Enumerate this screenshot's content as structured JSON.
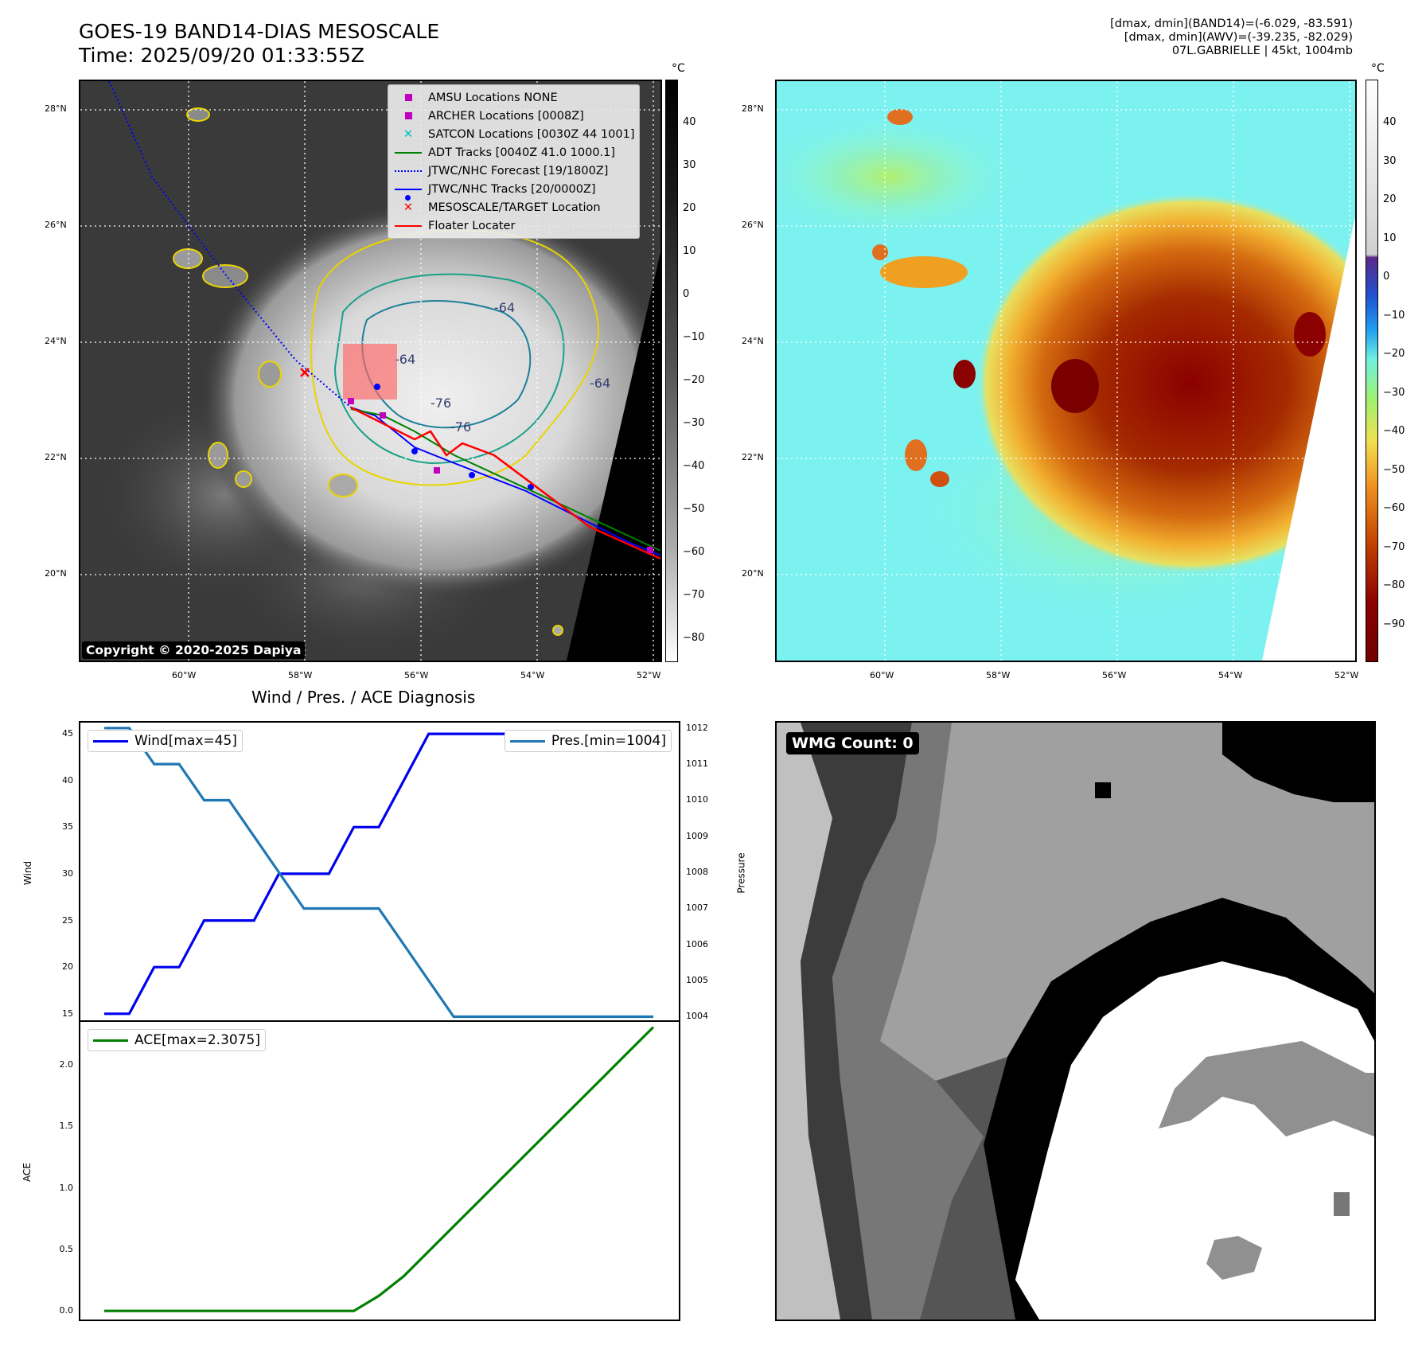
{
  "header": {
    "title_line1": "GOES-19 BAND14-DIAS MESOSCALE",
    "title_line2": "Time: 2025/09/20 01:33:55Z",
    "right_line1": "[dmax, dmin](BAND14)=(-6.029, -83.591)",
    "right_line2": "[dmax, dmin](AWV)=(-39.235, -82.029)",
    "right_line3": "07L.GABRIELLE | 45kt, 1004mb"
  },
  "map": {
    "lat_ticks": [
      "28°N",
      "26°N",
      "24°N",
      "22°N",
      "20°N"
    ],
    "lon_ticks": [
      "60°W",
      "58°W",
      "56°W",
      "54°W",
      "52°W"
    ],
    "copyright": "Copyright © 2020-2025 Dapiya",
    "contour_labels": [
      "-64",
      "-64",
      "-76",
      "-76",
      "-64"
    ],
    "legend": [
      {
        "label": "AMSU Locations NONE",
        "color": "#c000c0",
        "marker": "square"
      },
      {
        "label": "ARCHER Locations [0008Z]",
        "color": "#c000c0",
        "marker": "square"
      },
      {
        "label": "SATCON Locations [0030Z 44 1001]",
        "color": "#00c0c0",
        "marker": "x"
      },
      {
        "label": "ADT Tracks [0040Z 41.0 1000.1]",
        "color": "#008000",
        "marker": "line"
      },
      {
        "label": "JTWC/NHC Forecast [19/1800Z]",
        "color": "#0000ff",
        "marker": "dotted"
      },
      {
        "label": "JTWC/NHC Tracks [20/0000Z]",
        "color": "#0000ff",
        "marker": "line-dot"
      },
      {
        "label": "MESOSCALE/TARGET Location",
        "color": "#ff0000",
        "marker": "x"
      },
      {
        "label": "Floater Locater",
        "color": "#ff0000",
        "marker": "line"
      }
    ]
  },
  "colorbar_gray": {
    "unit": "°C",
    "ticks": [
      "40",
      "30",
      "20",
      "10",
      "0",
      "−10",
      "−20",
      "−30",
      "−40",
      "−50",
      "−60",
      "−70",
      "−80"
    ]
  },
  "colorbar_color": {
    "unit": "°C",
    "ticks": [
      "40",
      "30",
      "20",
      "10",
      "0",
      "−10",
      "−20",
      "−30",
      "−40",
      "−50",
      "−60",
      "−70",
      "−80",
      "−90"
    ]
  },
  "diag": {
    "title": "Wind / Pres. / ACE Diagnosis",
    "wind_label": "Wind[max=45]",
    "pres_label": "Pres.[min=1004]",
    "ace_label": "ACE[max=2.3075]",
    "ylabel_wind": "Wind",
    "ylabel_pres": "Pressure",
    "ylabel_ace": "ACE",
    "wind_ticks": [
      "45",
      "40",
      "35",
      "30",
      "25",
      "20",
      "15"
    ],
    "pres_ticks": [
      "1012",
      "1011",
      "1010",
      "1009",
      "1008",
      "1007",
      "1006",
      "1005",
      "1004"
    ],
    "ace_ticks": [
      "2.0",
      "1.5",
      "1.0",
      "0.5",
      "0.0"
    ]
  },
  "wmg": {
    "label": "WMG Count: 0"
  },
  "chart_data": [
    {
      "type": "line",
      "title": "Wind / Pres. / ACE Diagnosis",
      "x": [
        0,
        1,
        2,
        3,
        4,
        5,
        6,
        7,
        8,
        9,
        10,
        11,
        12,
        13,
        14,
        15,
        16,
        17,
        18,
        19,
        20,
        21,
        22
      ],
      "series": [
        {
          "name": "Wind[max=45]",
          "axis": "left",
          "color": "#0000ee",
          "values": [
            15,
            15,
            20,
            20,
            25,
            25,
            25,
            30,
            30,
            30,
            35,
            35,
            40,
            45,
            45,
            45,
            45,
            45,
            45,
            45,
            45,
            45,
            45
          ]
        },
        {
          "name": "Pres.[min=1004]",
          "axis": "right",
          "color": "#1f77b4",
          "values": [
            1012,
            1012,
            1011,
            1011,
            1010,
            1010,
            1009,
            1008,
            1007,
            1007,
            1007,
            1007,
            1006,
            1005,
            1004,
            1004,
            1004,
            1004,
            1004,
            1004,
            1004,
            1004,
            1004
          ]
        }
      ],
      "ylabel": "Wind",
      "ylim": [
        14.3,
        46.2
      ],
      "y2label": "Pressure",
      "y2lim": [
        1003.9,
        1012.15
      ],
      "legend": [
        "upper-left",
        "upper-right"
      ]
    },
    {
      "type": "line",
      "x": [
        0,
        1,
        2,
        3,
        4,
        5,
        6,
        7,
        8,
        9,
        10,
        11,
        12,
        13,
        14,
        15,
        16,
        17,
        18,
        19,
        20,
        21,
        22
      ],
      "series": [
        {
          "name": "ACE[max=2.3075]",
          "color": "#008000",
          "values": [
            0,
            0,
            0,
            0,
            0,
            0,
            0,
            0,
            0,
            0,
            0,
            0.1225,
            0.2825,
            0.485,
            0.6875,
            0.89,
            1.0925,
            1.295,
            1.4975,
            1.7,
            1.9025,
            2.105,
            2.3075
          ]
        }
      ],
      "ylabel": "ACE",
      "ylim": [
        -0.07,
        2.35
      ],
      "legend": "upper-left"
    }
  ]
}
